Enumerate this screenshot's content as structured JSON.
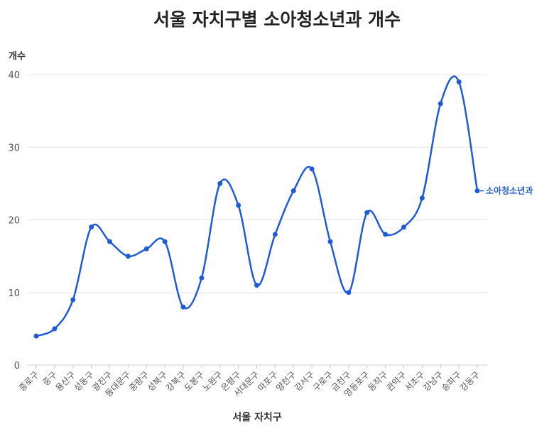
{
  "chart_data": {
    "type": "line",
    "title": "서울 자치구별 소아청소년과 개수",
    "xlabel": "서울 자치구",
    "ylabel": "개수",
    "ylim": [
      0,
      40
    ],
    "yticks": [
      0,
      10,
      20,
      30,
      40
    ],
    "grid": true,
    "curve": "smooth",
    "categories": [
      "종로구",
      "중구",
      "용산구",
      "성동구",
      "광진구",
      "동대문구",
      "중랑구",
      "성북구",
      "강북구",
      "도봉구",
      "노원구",
      "은평구",
      "서대문구",
      "마포구",
      "양천구",
      "강서구",
      "구로구",
      "금천구",
      "영등포구",
      "동작구",
      "관악구",
      "서초구",
      "강남구",
      "송파구",
      "강동구"
    ],
    "series": [
      {
        "name": "소아청소년과",
        "color": "#1f5bd6",
        "values": [
          4,
          5,
          9,
          19,
          17,
          15,
          16,
          17,
          8,
          12,
          25,
          22,
          11,
          18,
          24,
          27,
          17,
          10,
          21,
          18,
          19,
          23,
          36,
          39,
          24
        ]
      }
    ]
  }
}
